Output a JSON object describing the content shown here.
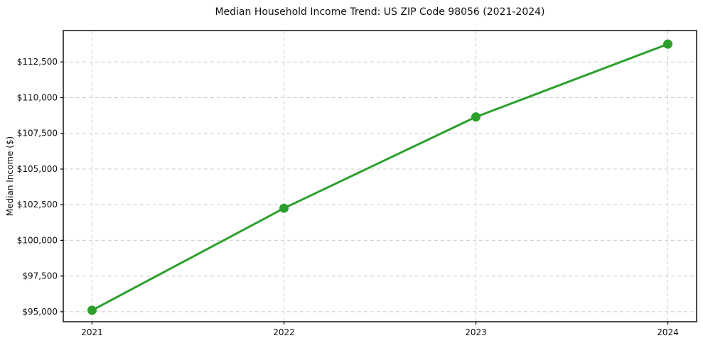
{
  "chart_data": {
    "type": "line",
    "title": "Median Household Income Trend: US ZIP Code 98056 (2021-2024)",
    "xlabel": "",
    "ylabel": "Median Income ($)",
    "x": [
      2021,
      2022,
      2023,
      2024
    ],
    "series": [
      {
        "name": "Median Household Income",
        "values": [
          95100,
          102250,
          108650,
          113750
        ]
      }
    ],
    "xticks": [
      2021,
      2022,
      2023,
      2024
    ],
    "xtick_labels": [
      "2021",
      "2022",
      "2023",
      "2024"
    ],
    "yticks": [
      95000,
      97500,
      100000,
      102500,
      105000,
      107500,
      110000,
      112500
    ],
    "ytick_labels": [
      "$95,000",
      "$97,500",
      "$100,000",
      "$102,500",
      "$105,000",
      "$107,500",
      "$110,000",
      "$112,500"
    ],
    "xlim": [
      2020.85,
      2024.15
    ],
    "ylim": [
      94300,
      114700
    ],
    "grid": true,
    "grid_style": "dashed",
    "legend": false,
    "line_color": "#2ca02c",
    "marker": "circle",
    "marker_radius": 6.5,
    "background_color": "#ffffff",
    "grid_color": "#cccccc",
    "text_color": "#111111"
  }
}
